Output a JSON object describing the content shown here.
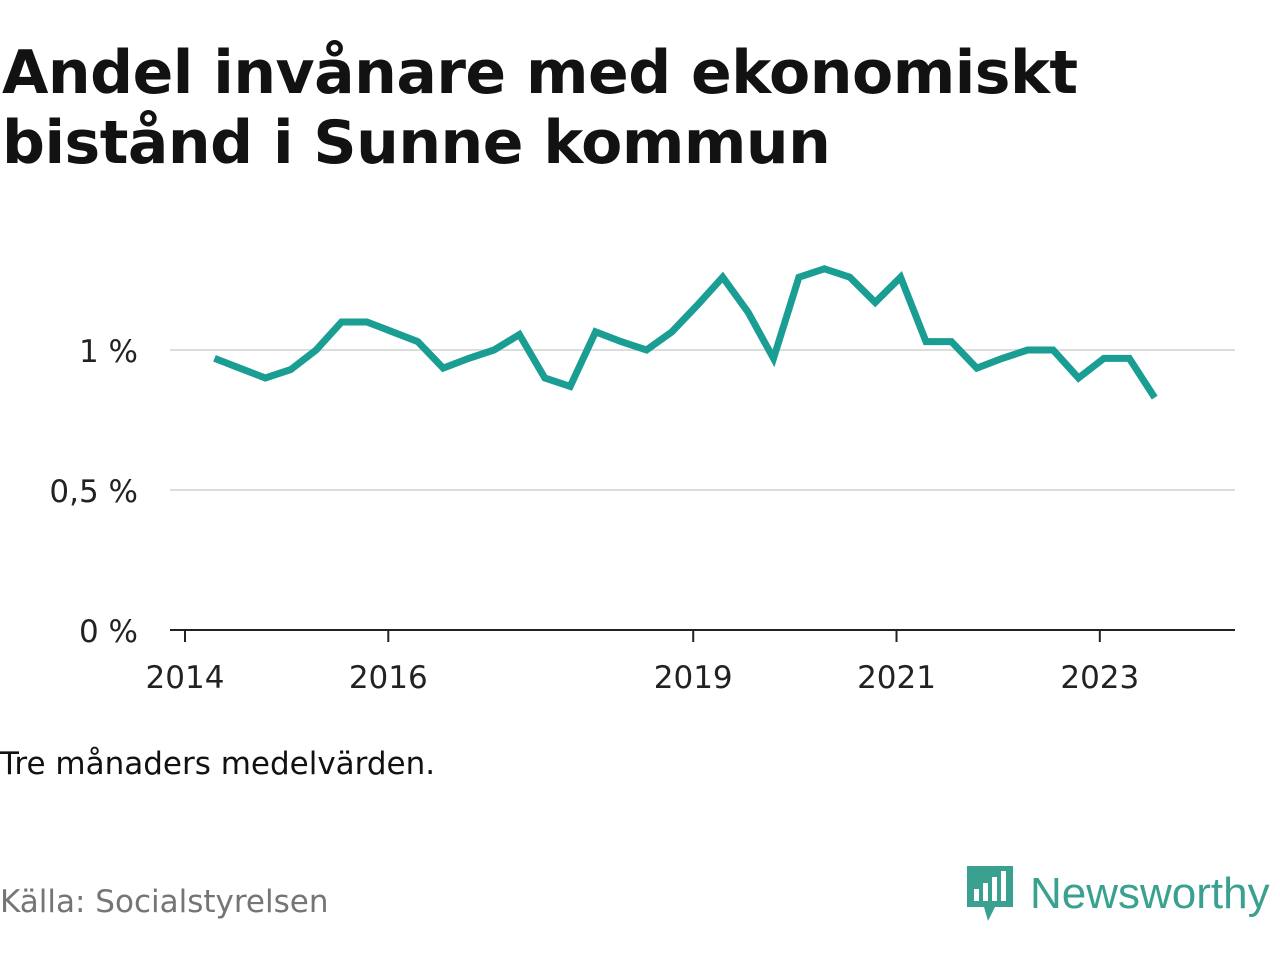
{
  "title": "Andel invånare med ekonomiskt bistånd i Sunne kommun",
  "note": "Tre månaders medelvärden.",
  "source": "Källa: Socialstyrelsen",
  "brand": "Newsworthy",
  "colors": {
    "line": "#1a9e93",
    "grid": "#dddddd",
    "axis": "#222222",
    "brand": "#3aa08f"
  },
  "chart_data": {
    "type": "line",
    "title": "Andel invånare med ekonomiskt bistånd i Sunne kommun",
    "xlabel": "",
    "ylabel": "",
    "xlim": [
      2014.0,
      2024.33
    ],
    "ylim": [
      0,
      1.4
    ],
    "x_ticks": [
      {
        "value": 2014,
        "label": "2014"
      },
      {
        "value": 2016,
        "label": "2016"
      },
      {
        "value": 2019,
        "label": "2019"
      },
      {
        "value": 2021,
        "label": "2021"
      },
      {
        "value": 2023,
        "label": "2023"
      }
    ],
    "y_ticks": [
      {
        "value": 0,
        "label": "0 %"
      },
      {
        "value": 0.5,
        "label": "0,5 %"
      },
      {
        "value": 1,
        "label": "1 %"
      }
    ],
    "grid": true,
    "series": [
      {
        "x": [
          2014.29,
          2014.54,
          2014.79,
          2015.04,
          2015.29,
          2015.54,
          2015.79,
          2016.04,
          2016.29,
          2016.54,
          2016.79,
          2017.04,
          2017.29,
          2017.54,
          2017.79,
          2018.04,
          2018.29,
          2018.54,
          2018.79,
          2019.04,
          2019.29,
          2019.54,
          2019.79,
          2020.04,
          2020.29,
          2020.54,
          2020.79,
          2021.04,
          2021.29,
          2021.54,
          2021.79,
          2022.04,
          2022.29,
          2022.54,
          2022.79,
          2023.04,
          2023.29,
          2023.54
        ],
        "values": [
          0.97,
          0.935,
          0.9,
          0.93,
          1.0,
          1.1,
          1.1,
          1.065,
          1.03,
          0.935,
          0.97,
          1.0,
          1.055,
          0.9,
          0.87,
          1.065,
          1.03,
          1.0,
          1.065,
          1.16,
          1.26,
          1.135,
          0.97,
          1.26,
          1.29,
          1.26,
          1.17,
          1.26,
          1.03,
          1.03,
          0.935,
          0.97,
          1.0,
          1.0,
          0.9,
          0.97,
          0.97,
          0.83
        ]
      }
    ]
  }
}
